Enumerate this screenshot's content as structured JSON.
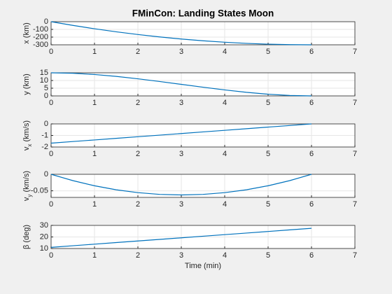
{
  "chart_data": [
    {
      "type": "line",
      "title": "FMinCon: Landing States Moon",
      "ylabel": "x (km)",
      "x": [
        0,
        0.5,
        1,
        1.5,
        2,
        2.5,
        3,
        3.5,
        4,
        4.5,
        5,
        5.5,
        6
      ],
      "series": [
        {
          "color": "#0072bd",
          "values": [
            0,
            -47.9,
            -91.7,
            -131.3,
            -166.7,
            -197.9,
            -225,
            -247.9,
            -266.7,
            -281.3,
            -291.7,
            -297.9,
            -300
          ]
        }
      ],
      "xlim": [
        0,
        7
      ],
      "xticks": [
        0,
        1,
        2,
        3,
        4,
        5,
        6,
        7
      ],
      "ylim": [
        -300,
        0
      ],
      "yticks": [
        -300,
        -200,
        -100,
        0
      ],
      "grid": true
    },
    {
      "type": "line",
      "ylabel": "y (km)",
      "x": [
        0,
        0.5,
        1,
        1.5,
        2,
        2.5,
        3,
        3.5,
        4,
        4.5,
        5,
        5.5,
        6
      ],
      "series": [
        {
          "color": "#0072bd",
          "values": [
            15,
            14.7,
            13.89,
            12.66,
            11.11,
            9.36,
            7.5,
            5.64,
            3.89,
            2.34,
            1.11,
            0.3,
            0
          ]
        }
      ],
      "xlim": [
        0,
        7
      ],
      "xticks": [
        0,
        1,
        2,
        3,
        4,
        5,
        6,
        7
      ],
      "ylim": [
        0,
        15
      ],
      "yticks": [
        0,
        5,
        10,
        15
      ],
      "grid": true
    },
    {
      "type": "line",
      "ylabel": [
        "v",
        "x",
        " (km/s)"
      ],
      "x": [
        0,
        0.5,
        1,
        1.5,
        2,
        2.5,
        3,
        3.5,
        4,
        4.5,
        5,
        5.5,
        6
      ],
      "series": [
        {
          "color": "#0072bd",
          "values": [
            -1.667,
            -1.528,
            -1.389,
            -1.25,
            -1.111,
            -0.972,
            -0.833,
            -0.694,
            -0.556,
            -0.417,
            -0.278,
            -0.139,
            0
          ]
        }
      ],
      "xlim": [
        0,
        7
      ],
      "xticks": [
        0,
        1,
        2,
        3,
        4,
        5,
        6,
        7
      ],
      "ylim": [
        -2,
        0
      ],
      "yticks": [
        -2,
        -1,
        0
      ],
      "grid": true
    },
    {
      "type": "line",
      "ylabel": [
        "v",
        "y",
        " (km/s)"
      ],
      "x": [
        0,
        0.5,
        1,
        1.5,
        2,
        2.5,
        3,
        3.5,
        4,
        4.5,
        5,
        5.5,
        6
      ],
      "series": [
        {
          "color": "#0072bd",
          "values": [
            0,
            -0.0191,
            -0.0347,
            -0.0469,
            -0.0556,
            -0.0608,
            -0.0625,
            -0.0608,
            -0.0556,
            -0.0469,
            -0.0347,
            -0.0191,
            0
          ]
        }
      ],
      "xlim": [
        0,
        7
      ],
      "xticks": [
        0,
        1,
        2,
        3,
        4,
        5,
        6,
        7
      ],
      "ylim": [
        -0.07,
        0
      ],
      "yticks": [
        -0.05,
        0
      ],
      "grid": true
    },
    {
      "type": "line",
      "ylabel": "β (deg)",
      "xlabel": "Time (min)",
      "x": [
        0,
        0.5,
        1,
        1.5,
        2,
        2.5,
        3,
        3.5,
        4,
        4.5,
        5,
        5.5,
        6
      ],
      "series": [
        {
          "color": "#0072bd",
          "values": [
            11,
            12.38,
            13.75,
            15.13,
            16.5,
            17.88,
            19.25,
            20.63,
            22,
            23.38,
            24.75,
            26.13,
            27.5
          ]
        }
      ],
      "xlim": [
        0,
        7
      ],
      "xticks": [
        0,
        1,
        2,
        3,
        4,
        5,
        6,
        7
      ],
      "ylim": [
        10,
        30
      ],
      "yticks": [
        10,
        20,
        30
      ],
      "grid": true
    }
  ]
}
